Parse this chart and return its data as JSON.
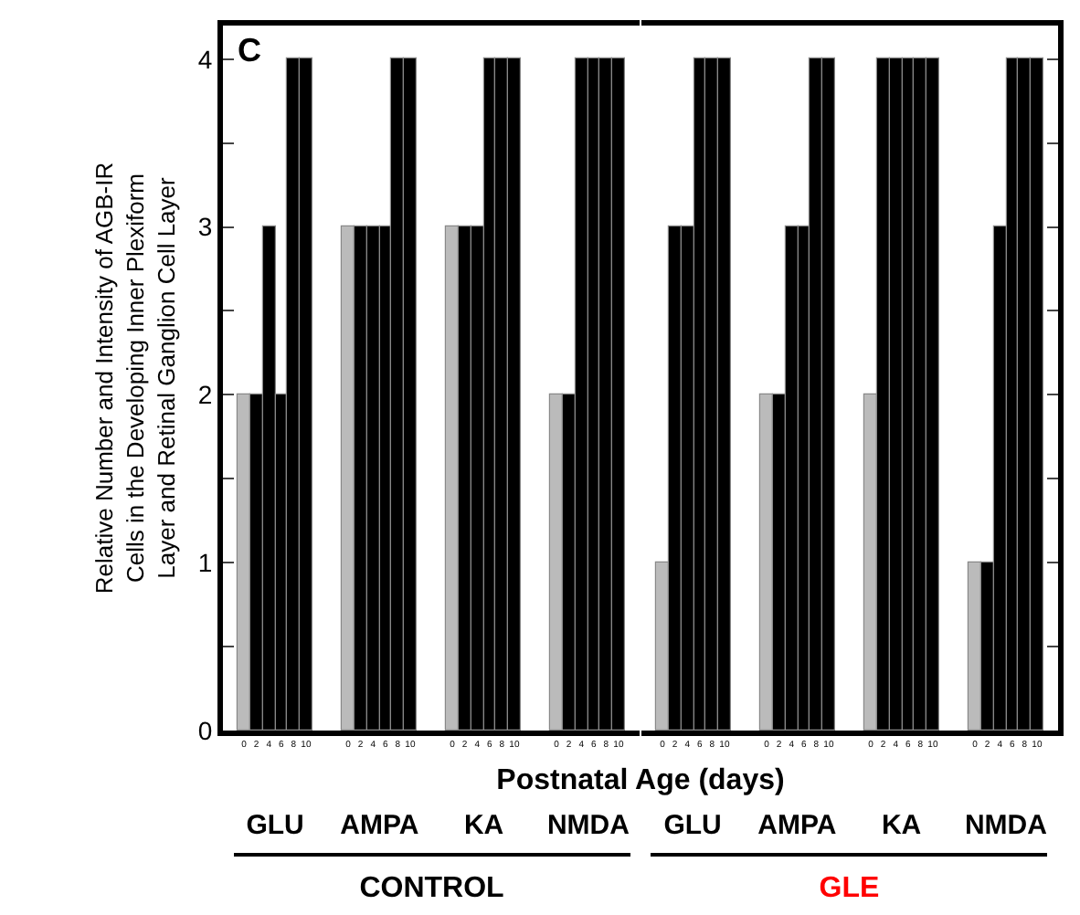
{
  "chart_data": [
    {
      "type": "bar",
      "xlabel": "GLU",
      "ylabel": "Relative Number and Intensity of AGB-IR Cells in the Developing Inner Plexiform Layer and Retinal Ganglion Cell Layer",
      "categories": [
        "0",
        "2",
        "4",
        "6",
        "8",
        "10"
      ],
      "values": [
        2,
        2,
        3,
        2,
        4,
        4
      ],
      "colors": [
        "#bbbbbb",
        "#000000",
        "#000000",
        "#000000",
        "#000000",
        "#000000"
      ],
      "ylim": [
        0,
        4.2
      ],
      "yticks": [
        0,
        {
          "value": 0.5,
          "label": null
        },
        1,
        {
          "value": 1.5,
          "label": null
        },
        2,
        {
          "value": 2.5,
          "label": null
        },
        3,
        {
          "value": 3.5,
          "label": null
        },
        4
      ],
      "annotations": [
        "C",
        "Postnatal Age (days)",
        "CONTROL",
        "GLE"
      ]
    },
    {
      "type": "bar",
      "xlabel": "AMPA",
      "categories": [
        "0",
        "2",
        "4",
        "6",
        "8",
        "10"
      ],
      "values": [
        3,
        3,
        3,
        3,
        4,
        4
      ],
      "colors": [
        "#bbbbbb",
        "#000000",
        "#000000",
        "#000000",
        "#000000",
        "#000000"
      ],
      "ylim": [
        0,
        4.2
      ],
      "tick_labels": "x"
    },
    {
      "type": "bar",
      "xlabel": "KA",
      "categories": [
        "0",
        "2",
        "4",
        "6",
        "8",
        "10"
      ],
      "values": [
        3,
        3,
        3,
        4,
        4,
        4
      ],
      "colors": [
        "#bbbbbb",
        "#000000",
        "#000000",
        "#000000",
        "#000000",
        "#000000"
      ],
      "ylim": [
        0,
        4.2
      ],
      "tick_labels": "x"
    },
    {
      "type": "bar",
      "xlabel": "NMDA",
      "categories": [
        "0",
        "2",
        "4",
        "6",
        "8",
        "10"
      ],
      "values": [
        2,
        2,
        4,
        4,
        4,
        4
      ],
      "colors": [
        "#bbbbbb",
        "#000000",
        "#000000",
        "#000000",
        "#000000",
        "#000000"
      ],
      "ylim": [
        0,
        4.2
      ],
      "tick_labels": "x"
    },
    {
      "type": "bar",
      "xlabel": "GLU",
      "categories": [
        "0",
        "2",
        "4",
        "6",
        "8",
        "10"
      ],
      "values": [
        1,
        3,
        3,
        4,
        4,
        4
      ],
      "colors": [
        "#bbbbbb",
        "#000000",
        "#000000",
        "#000000",
        "#000000",
        "#000000"
      ],
      "ylim": [
        0,
        4.2
      ],
      "tick_labels": "x"
    },
    {
      "type": "bar",
      "xlabel": "AMPA",
      "categories": [
        "0",
        "2",
        "4",
        "6",
        "8",
        "10"
      ],
      "values": [
        2,
        2,
        3,
        3,
        4,
        4
      ],
      "colors": [
        "#bbbbbb",
        "#000000",
        "#000000",
        "#000000",
        "#000000",
        "#000000"
      ],
      "ylim": [
        0,
        4.2
      ],
      "tick_labels": "x"
    },
    {
      "type": "bar",
      "xlabel": "KA",
      "categories": [
        "0",
        "2",
        "4",
        "6",
        "8",
        "10"
      ],
      "values": [
        2,
        4,
        4,
        4,
        4,
        4
      ],
      "colors": [
        "#bbbbbb",
        "#000000",
        "#000000",
        "#000000",
        "#000000",
        "#000000"
      ],
      "ylim": [
        0,
        4.2
      ],
      "tick_labels": "x"
    },
    {
      "type": "bar",
      "xlabel": "NMDA",
      "categories": [
        "0",
        "2",
        "4",
        "6",
        "8",
        "10"
      ],
      "values": [
        1,
        1,
        3,
        4,
        4,
        4
      ],
      "colors": [
        "#bbbbbb",
        "#000000",
        "#000000",
        "#000000",
        "#000000",
        "#000000"
      ],
      "ylim": [
        0,
        4.2
      ],
      "yticks": [
        0,
        {
          "value": 0.5,
          "label": null
        },
        1,
        {
          "value": 1.5,
          "label": null
        },
        2,
        {
          "value": 2.5,
          "label": null
        },
        3,
        {
          "value": 3.5,
          "label": null
        },
        4
      ],
      "tick_labels": "x"
    }
  ]
}
